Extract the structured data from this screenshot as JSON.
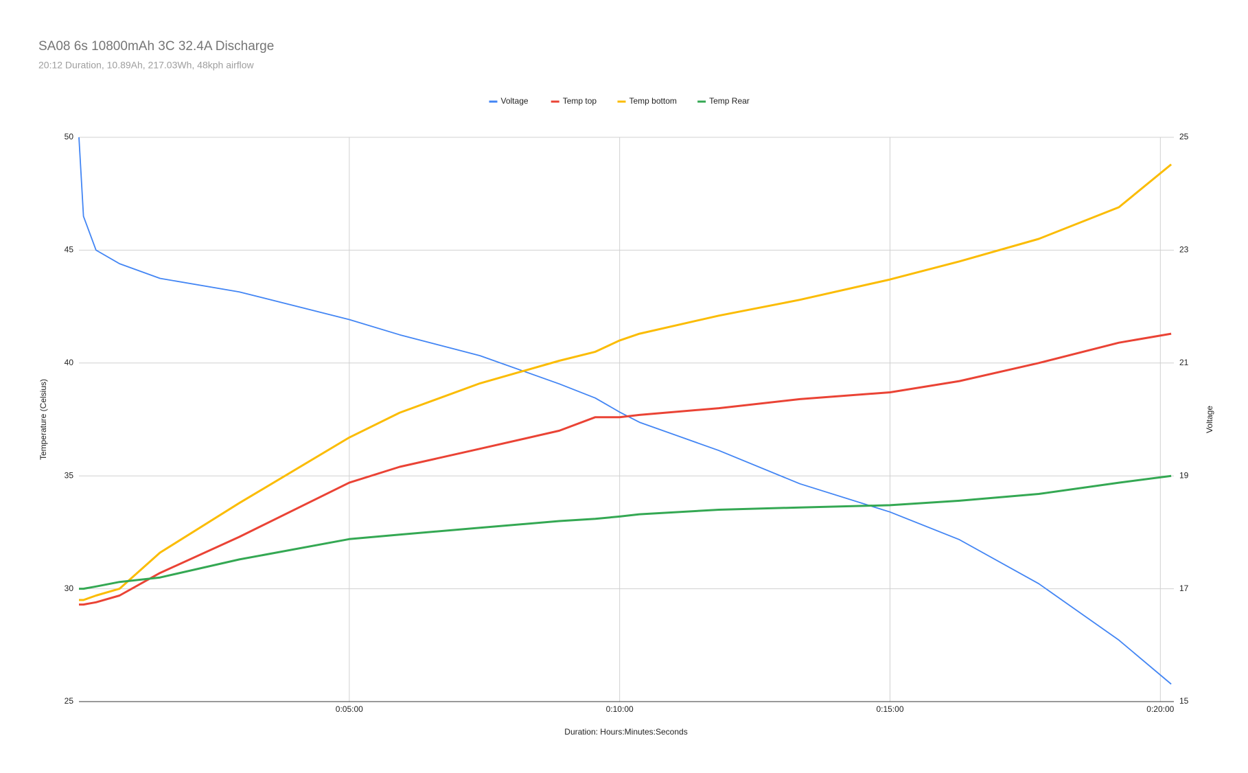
{
  "chart_data": {
    "type": "line",
    "title": "SA08 6s 10800mAh 3C 32.4A Discharge",
    "subtitle": "20:12 Duration, 10.89Ah, 217.03Wh, 48kph airflow",
    "x_label": "Duration: Hours:Minutes:Seconds",
    "y_label": "Temperature (Celsius)",
    "y2_label": "Voltage",
    "x": [
      0,
      5,
      19,
      45,
      90,
      178,
      300,
      356,
      445,
      533,
      573,
      600,
      622,
      710,
      800,
      900,
      977,
      1065,
      1154,
      1212
    ],
    "xlim": [
      0,
      1215
    ],
    "xticks": [
      {
        "value": 300,
        "label": "0:05:00"
      },
      {
        "value": 600,
        "label": "0:10:00"
      },
      {
        "value": 900,
        "label": "0:15:00"
      },
      {
        "value": 1200,
        "label": "0:20:00"
      }
    ],
    "ylim": [
      25,
      50
    ],
    "yticks": [
      25,
      30,
      35,
      40,
      45,
      50
    ],
    "y2lim": [
      15,
      25
    ],
    "y2ticks": [
      15,
      17,
      19,
      21,
      23,
      25
    ],
    "grid": true,
    "legend": "top",
    "series": [
      {
        "name": "Voltage",
        "color": "#4285f4",
        "axis": "y2",
        "values": [
          25,
          23.6,
          23.0,
          22.76,
          22.5,
          22.26,
          21.77,
          21.5,
          21.13,
          20.63,
          20.38,
          20.13,
          19.95,
          19.45,
          18.86,
          18.36,
          17.87,
          17.09,
          16.09,
          15.31
        ]
      },
      {
        "name": "Temp top",
        "color": "#ea4335",
        "values": [
          29.3,
          29.3,
          29.4,
          29.7,
          30.7,
          32.3,
          34.7,
          35.4,
          36.2,
          37.0,
          37.6,
          37.6,
          37.7,
          38.0,
          38.4,
          38.7,
          39.2,
          40.0,
          40.9,
          41.3
        ]
      },
      {
        "name": "Temp bottom",
        "color": "#fbbc04",
        "values": [
          29.5,
          29.5,
          29.7,
          30.0,
          31.6,
          33.8,
          36.7,
          37.8,
          39.1,
          40.1,
          40.5,
          41.0,
          41.3,
          42.1,
          42.8,
          43.7,
          44.5,
          45.5,
          46.9,
          48.8
        ]
      },
      {
        "name": "Temp Rear",
        "color": "#34a853",
        "values": [
          30.0,
          30.0,
          30.1,
          30.3,
          30.5,
          31.3,
          32.2,
          32.4,
          32.7,
          33.0,
          33.1,
          33.2,
          33.3,
          33.5,
          33.6,
          33.7,
          33.9,
          34.2,
          34.7,
          35.0
        ]
      }
    ]
  }
}
